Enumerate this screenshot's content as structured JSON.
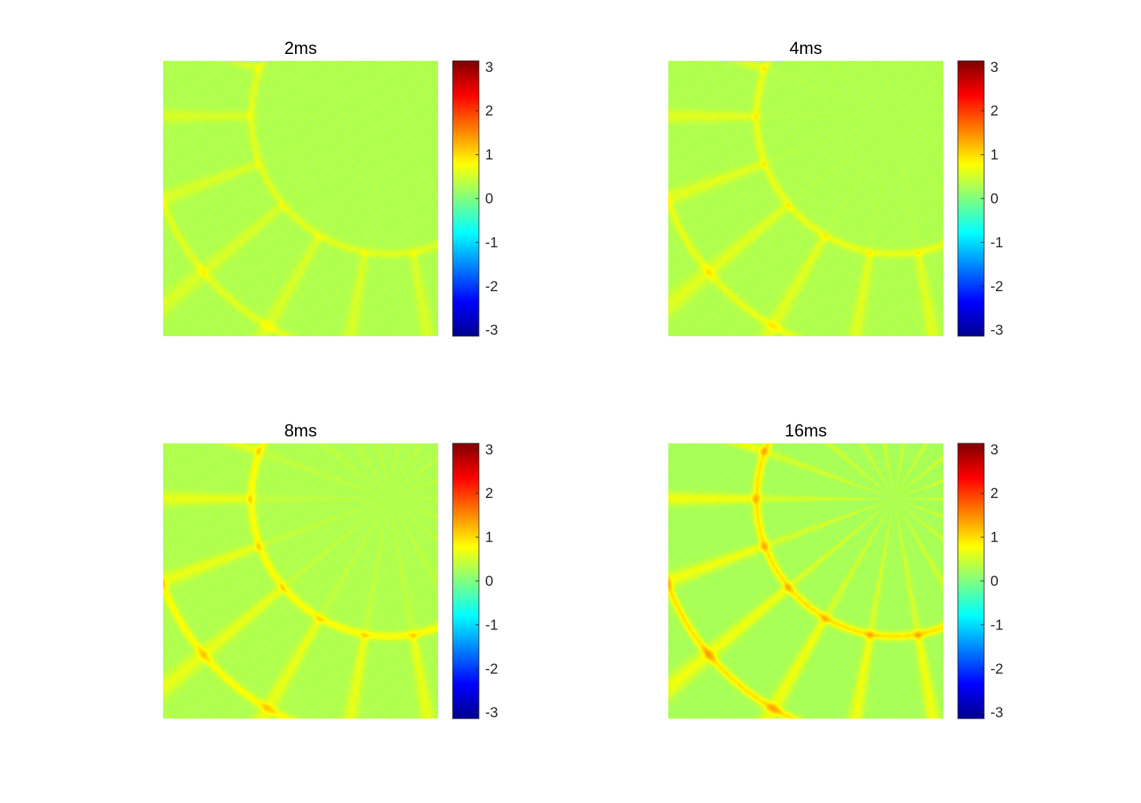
{
  "chart_data": [
    {
      "type": "heatmap",
      "title": "2ms",
      "colormap": "jet",
      "clim": [
        -3.14,
        3.14
      ],
      "colorbar_ticks": [
        3,
        2,
        1,
        0,
        -1,
        -2,
        -3
      ],
      "colorbar_tick_labels": [
        "3",
        "2",
        "1",
        "0",
        "-1",
        "-2",
        "-3"
      ],
      "axes_visible": false,
      "pattern": {
        "baseline_value": 0.3,
        "stripe_amplitude": 0.25,
        "ring_amplitude": 0.3,
        "spoke_count": 36,
        "inner_spokes": 0.05
      }
    },
    {
      "type": "heatmap",
      "title": "4ms",
      "colormap": "jet",
      "clim": [
        -3.14,
        3.14
      ],
      "colorbar_ticks": [
        3,
        2,
        1,
        0,
        -1,
        -2,
        -3
      ],
      "colorbar_tick_labels": [
        "3",
        "2",
        "1",
        "0",
        "-1",
        "-2",
        "-3"
      ],
      "axes_visible": false,
      "pattern": {
        "baseline_value": 0.3,
        "stripe_amplitude": 0.3,
        "ring_amplitude": 0.35,
        "spoke_count": 36,
        "inner_spokes": 0.1
      }
    },
    {
      "type": "heatmap",
      "title": "8ms",
      "colormap": "jet",
      "clim": [
        -3.14,
        3.14
      ],
      "colorbar_ticks": [
        3,
        2,
        1,
        0,
        -1,
        -2,
        -3
      ],
      "colorbar_tick_labels": [
        "3",
        "2",
        "1",
        "0",
        "-1",
        "-2",
        "-3"
      ],
      "axes_visible": false,
      "pattern": {
        "baseline_value": 0.3,
        "stripe_amplitude": 0.35,
        "ring_amplitude": 0.5,
        "spoke_count": 36,
        "inner_spokes": 0.3
      }
    },
    {
      "type": "heatmap",
      "title": "16ms",
      "colormap": "jet",
      "clim": [
        -3.14,
        3.14
      ],
      "colorbar_ticks": [
        3,
        2,
        1,
        0,
        -1,
        -2,
        -3
      ],
      "colorbar_tick_labels": [
        "3",
        "2",
        "1",
        "0",
        "-1",
        "-2",
        "-3"
      ],
      "axes_visible": false,
      "pattern": {
        "baseline_value": 0.25,
        "stripe_amplitude": 0.45,
        "ring_amplitude": 0.7,
        "spoke_count": 36,
        "inner_spokes": 0.6
      }
    }
  ]
}
